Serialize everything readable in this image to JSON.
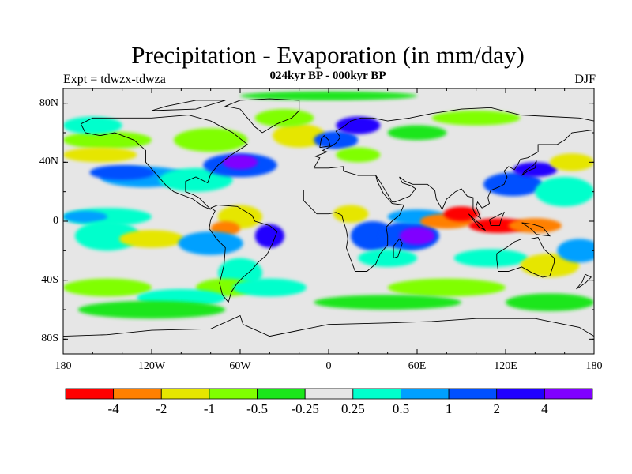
{
  "title": "Precipitation - Evaporation (in mm/day)",
  "subtitle": "024kyr BP - 000kyr BP",
  "left_label": "Expt = tdwzx-tdwza",
  "right_label": "DJF",
  "y_ticks": [
    "80N",
    "40N",
    "0",
    "40S",
    "80S"
  ],
  "x_ticks": [
    "180",
    "120W",
    "60W",
    "0",
    "60E",
    "120E",
    "180"
  ],
  "colorbar": {
    "colors": [
      "#ff0000",
      "#ff8000",
      "#e6e600",
      "#80ff00",
      "#1ae61a",
      "#e6e6e6",
      "#00ffcc",
      "#00a0ff",
      "#0050ff",
      "#2000ff",
      "#8000ff"
    ],
    "labels": [
      "-4",
      "-2",
      "-1",
      "-0.5",
      "-0.25",
      "0.25",
      "0.5",
      "1",
      "2",
      "4"
    ]
  },
  "map": {
    "background": "#e6e6e6",
    "patches": [
      {
        "lon": -150,
        "lat": 3,
        "rx": 30,
        "ry": 6,
        "color": "#00ffcc"
      },
      {
        "lon": -165,
        "lat": 3,
        "rx": 15,
        "ry": 4,
        "color": "#00a0ff"
      },
      {
        "lon": -125,
        "lat": 30,
        "rx": 30,
        "ry": 7,
        "color": "#00a0ff"
      },
      {
        "lon": -140,
        "lat": 33,
        "rx": 22,
        "ry": 5,
        "color": "#0050ff"
      },
      {
        "lon": -150,
        "lat": -10,
        "rx": 22,
        "ry": 10,
        "color": "#00ffcc"
      },
      {
        "lon": -120,
        "lat": -12,
        "rx": 22,
        "ry": 6,
        "color": "#e6e600"
      },
      {
        "lon": -150,
        "lat": 55,
        "rx": 30,
        "ry": 6,
        "color": "#80ff00"
      },
      {
        "lon": -160,
        "lat": 65,
        "rx": 20,
        "ry": 6,
        "color": "#00ffcc"
      },
      {
        "lon": -155,
        "lat": 45,
        "rx": 25,
        "ry": 5,
        "color": "#e6e600"
      },
      {
        "lon": -90,
        "lat": 28,
        "rx": 25,
        "ry": 8,
        "color": "#00ffcc"
      },
      {
        "lon": -60,
        "lat": 38,
        "rx": 25,
        "ry": 8,
        "color": "#0050ff"
      },
      {
        "lon": -60,
        "lat": 40,
        "rx": 12,
        "ry": 5,
        "color": "#8000ff"
      },
      {
        "lon": -80,
        "lat": 55,
        "rx": 25,
        "ry": 8,
        "color": "#80ff00"
      },
      {
        "lon": -60,
        "lat": 3,
        "rx": 15,
        "ry": 8,
        "color": "#e6e600"
      },
      {
        "lon": -70,
        "lat": -5,
        "rx": 10,
        "ry": 5,
        "color": "#ff8000"
      },
      {
        "lon": -40,
        "lat": -10,
        "rx": 10,
        "ry": 8,
        "color": "#2000ff"
      },
      {
        "lon": -80,
        "lat": -15,
        "rx": 22,
        "ry": 8,
        "color": "#00a0ff"
      },
      {
        "lon": -60,
        "lat": -35,
        "rx": 15,
        "ry": 10,
        "color": "#00ffcc"
      },
      {
        "lon": -70,
        "lat": -45,
        "rx": 20,
        "ry": 6,
        "color": "#80ff00"
      },
      {
        "lon": -40,
        "lat": -45,
        "rx": 25,
        "ry": 6,
        "color": "#00ffcc"
      },
      {
        "lon": -150,
        "lat": -45,
        "rx": 30,
        "ry": 6,
        "color": "#80ff00"
      },
      {
        "lon": -100,
        "lat": -52,
        "rx": 30,
        "ry": 6,
        "color": "#00ffcc"
      },
      {
        "lon": -120,
        "lat": -60,
        "rx": 50,
        "ry": 6,
        "color": "#1ae61a"
      },
      {
        "lon": -20,
        "lat": 58,
        "rx": 18,
        "ry": 8,
        "color": "#e6e600"
      },
      {
        "lon": -30,
        "lat": 70,
        "rx": 20,
        "ry": 6,
        "color": "#80ff00"
      },
      {
        "lon": 5,
        "lat": 55,
        "rx": 15,
        "ry": 6,
        "color": "#0050ff"
      },
      {
        "lon": 20,
        "lat": 65,
        "rx": 15,
        "ry": 6,
        "color": "#2000ff"
      },
      {
        "lon": 20,
        "lat": 45,
        "rx": 15,
        "ry": 5,
        "color": "#80ff00"
      },
      {
        "lon": 15,
        "lat": 5,
        "rx": 12,
        "ry": 6,
        "color": "#e6e600"
      },
      {
        "lon": 30,
        "lat": -10,
        "rx": 15,
        "ry": 10,
        "color": "#0050ff"
      },
      {
        "lon": 55,
        "lat": -10,
        "rx": 20,
        "ry": 10,
        "color": "#0050ff"
      },
      {
        "lon": 60,
        "lat": -10,
        "rx": 12,
        "ry": 6,
        "color": "#8000ff"
      },
      {
        "lon": 40,
        "lat": -25,
        "rx": 20,
        "ry": 6,
        "color": "#00ffcc"
      },
      {
        "lon": 60,
        "lat": 3,
        "rx": 20,
        "ry": 5,
        "color": "#00a0ff"
      },
      {
        "lon": 80,
        "lat": 0,
        "rx": 18,
        "ry": 5,
        "color": "#ff8000"
      },
      {
        "lon": 90,
        "lat": 5,
        "rx": 12,
        "ry": 5,
        "color": "#ff0000"
      },
      {
        "lon": 115,
        "lat": -3,
        "rx": 20,
        "ry": 5,
        "color": "#ff0000"
      },
      {
        "lon": 140,
        "lat": -3,
        "rx": 18,
        "ry": 5,
        "color": "#ff8000"
      },
      {
        "lon": 125,
        "lat": 25,
        "rx": 20,
        "ry": 8,
        "color": "#0050ff"
      },
      {
        "lon": 140,
        "lat": 35,
        "rx": 15,
        "ry": 5,
        "color": "#2000ff"
      },
      {
        "lon": 160,
        "lat": 20,
        "rx": 20,
        "ry": 10,
        "color": "#00ffcc"
      },
      {
        "lon": 165,
        "lat": 40,
        "rx": 15,
        "ry": 6,
        "color": "#e6e600"
      },
      {
        "lon": 110,
        "lat": -25,
        "rx": 25,
        "ry": 6,
        "color": "#00ffcc"
      },
      {
        "lon": 150,
        "lat": -30,
        "rx": 20,
        "ry": 8,
        "color": "#e6e600"
      },
      {
        "lon": 170,
        "lat": -20,
        "rx": 15,
        "ry": 8,
        "color": "#00a0ff"
      },
      {
        "lon": 80,
        "lat": -45,
        "rx": 40,
        "ry": 6,
        "color": "#80ff00"
      },
      {
        "lon": 40,
        "lat": -55,
        "rx": 50,
        "ry": 5,
        "color": "#1ae61a"
      },
      {
        "lon": 150,
        "lat": -55,
        "rx": 30,
        "ry": 6,
        "color": "#1ae61a"
      },
      {
        "lon": 100,
        "lat": 70,
        "rx": 30,
        "ry": 5,
        "color": "#80ff00"
      },
      {
        "lon": 60,
        "lat": 60,
        "rx": 20,
        "ry": 5,
        "color": "#1ae61a"
      },
      {
        "lon": 0,
        "lat": 85,
        "rx": 60,
        "ry": 3,
        "color": "#1ae61a"
      }
    ],
    "coastlines": [
      [
        [
          -168,
          66
        ],
        [
          -160,
          70
        ],
        [
          -140,
          70
        ],
        [
          -120,
          70
        ],
        [
          -95,
          72
        ],
        [
          -80,
          68
        ],
        [
          -65,
          60
        ],
        [
          -55,
          52
        ],
        [
          -66,
          45
        ],
        [
          -75,
          38
        ],
        [
          -80,
          32
        ],
        [
          -82,
          26
        ],
        [
          -90,
          30
        ],
        [
          -97,
          27
        ],
        [
          -97,
          20
        ],
        [
          -92,
          18
        ],
        [
          -88,
          16
        ],
        [
          -84,
          12
        ],
        [
          -80,
          8
        ],
        [
          -85,
          10
        ],
        [
          -92,
          15
        ],
        [
          -105,
          20
        ],
        [
          -110,
          24
        ],
        [
          -117,
          32
        ],
        [
          -124,
          40
        ],
        [
          -124,
          48
        ],
        [
          -132,
          55
        ],
        [
          -145,
          60
        ],
        [
          -155,
          58
        ],
        [
          -165,
          60
        ],
        [
          -168,
          66
        ]
      ],
      [
        [
          -80,
          9
        ],
        [
          -75,
          11
        ],
        [
          -62,
          10
        ],
        [
          -52,
          4
        ],
        [
          -50,
          0
        ],
        [
          -40,
          -3
        ],
        [
          -35,
          -7
        ],
        [
          -38,
          -15
        ],
        [
          -42,
          -23
        ],
        [
          -48,
          -28
        ],
        [
          -52,
          -33
        ],
        [
          -58,
          -38
        ],
        [
          -62,
          -42
        ],
        [
          -66,
          -48
        ],
        [
          -68,
          -55
        ],
        [
          -72,
          -50
        ],
        [
          -74,
          -42
        ],
        [
          -71,
          -30
        ],
        [
          -70,
          -18
        ],
        [
          -76,
          -12
        ],
        [
          -81,
          -5
        ],
        [
          -80,
          1
        ],
        [
          -77,
          7
        ],
        [
          -80,
          9
        ]
      ],
      [
        [
          -10,
          36
        ],
        [
          -6,
          43
        ],
        [
          -9,
          44
        ],
        [
          -1,
          47
        ],
        [
          -4,
          48
        ],
        [
          2,
          51
        ],
        [
          5,
          53
        ],
        [
          8,
          57
        ],
        [
          5,
          61
        ],
        [
          10,
          64
        ],
        [
          15,
          68
        ],
        [
          22,
          70
        ],
        [
          30,
          70
        ],
        [
          40,
          68
        ],
        [
          55,
          70
        ],
        [
          70,
          73
        ],
        [
          90,
          76
        ],
        [
          110,
          77
        ],
        [
          130,
          72
        ],
        [
          150,
          71
        ],
        [
          170,
          70
        ],
        [
          180,
          68
        ]
      ],
      [
        [
          180,
          62
        ],
        [
          165,
          60
        ],
        [
          160,
          55
        ],
        [
          155,
          52
        ],
        [
          142,
          52
        ],
        [
          142,
          47
        ],
        [
          135,
          43
        ],
        [
          130,
          42
        ],
        [
          128,
          38
        ],
        [
          126,
          35
        ],
        [
          122,
          37
        ],
        [
          119,
          34
        ],
        [
          121,
          30
        ],
        [
          119,
          25
        ],
        [
          115,
          23
        ],
        [
          110,
          21
        ],
        [
          108,
          16
        ],
        [
          109,
          12
        ],
        [
          106,
          10
        ],
        [
          104,
          9
        ],
        [
          101,
          13
        ],
        [
          100,
          10
        ],
        [
          103,
          2
        ],
        [
          100,
          4
        ],
        [
          98,
          8
        ],
        [
          98,
          16
        ],
        [
          94,
          17
        ],
        [
          90,
          22
        ],
        [
          86,
          20
        ],
        [
          80,
          15
        ],
        [
          77,
          8
        ],
        [
          73,
          15
        ],
        [
          72,
          21
        ],
        [
          67,
          25
        ],
        [
          57,
          25
        ],
        [
          52,
          27
        ],
        [
          48,
          30
        ],
        [
          50,
          26
        ],
        [
          56,
          24
        ],
        [
          59,
          22
        ],
        [
          55,
          17
        ],
        [
          45,
          13
        ],
        [
          43,
          13
        ],
        [
          39,
          20
        ],
        [
          34,
          28
        ],
        [
          32,
          31
        ],
        [
          28,
          31
        ],
        [
          20,
          31
        ],
        [
          10,
          34
        ],
        [
          10,
          37
        ],
        [
          0,
          36
        ],
        [
          -5,
          36
        ],
        [
          -10,
          36
        ]
      ],
      [
        [
          -17,
          21
        ],
        [
          -17,
          14
        ],
        [
          -12,
          9
        ],
        [
          -8,
          5
        ],
        [
          0,
          5
        ],
        [
          5,
          6
        ],
        [
          9,
          4
        ],
        [
          10,
          0
        ],
        [
          12,
          -6
        ],
        [
          13,
          -12
        ],
        [
          12,
          -18
        ],
        [
          15,
          -26
        ],
        [
          18,
          -34
        ],
        [
          26,
          -34
        ],
        [
          32,
          -29
        ],
        [
          35,
          -22
        ],
        [
          40,
          -16
        ],
        [
          40,
          -10
        ],
        [
          39,
          -4
        ],
        [
          43,
          0
        ],
        [
          48,
          4
        ],
        [
          51,
          11
        ],
        [
          43,
          12
        ],
        [
          37,
          19
        ],
        [
          33,
          27
        ],
        [
          32,
          31
        ]
      ],
      [
        [
          114,
          -22
        ],
        [
          114,
          -26
        ],
        [
          115,
          -34
        ],
        [
          122,
          -34
        ],
        [
          131,
          -31
        ],
        [
          138,
          -35
        ],
        [
          145,
          -38
        ],
        [
          150,
          -37
        ],
        [
          153,
          -28
        ],
        [
          153,
          -25
        ],
        [
          146,
          -19
        ],
        [
          142,
          -11
        ],
        [
          137,
          -12
        ],
        [
          131,
          -12
        ],
        [
          126,
          -14
        ],
        [
          122,
          -17
        ],
        [
          114,
          -22
        ]
      ],
      [
        [
          -180,
          -78
        ],
        [
          -150,
          -77
        ],
        [
          -120,
          -74
        ],
        [
          -80,
          -73
        ],
        [
          -60,
          -64
        ],
        [
          -58,
          -70
        ],
        [
          -40,
          -78
        ],
        [
          0,
          -70
        ],
        [
          40,
          -69
        ],
        [
          70,
          -68
        ],
        [
          100,
          -66
        ],
        [
          140,
          -66
        ],
        [
          170,
          -72
        ],
        [
          180,
          -78
        ]
      ],
      [
        [
          -45,
          60
        ],
        [
          -50,
          64
        ],
        [
          -55,
          70
        ],
        [
          -60,
          76
        ],
        [
          -70,
          78
        ],
        [
          -60,
          82
        ],
        [
          -40,
          83
        ],
        [
          -20,
          82
        ],
        [
          -20,
          75
        ],
        [
          -25,
          70
        ],
        [
          -35,
          66
        ],
        [
          -45,
          60
        ]
      ],
      [
        [
          95,
          5
        ],
        [
          98,
          2
        ],
        [
          104,
          -3
        ],
        [
          106,
          -6
        ],
        [
          102,
          -4
        ],
        [
          98,
          1
        ],
        [
          95,
          5
        ]
      ],
      [
        [
          109,
          1
        ],
        [
          115,
          4
        ],
        [
          119,
          6
        ],
        [
          117,
          1
        ],
        [
          116,
          -3
        ],
        [
          110,
          -3
        ],
        [
          109,
          1
        ]
      ],
      [
        [
          131,
          -1
        ],
        [
          138,
          -2
        ],
        [
          145,
          -4
        ],
        [
          150,
          -10
        ],
        [
          141,
          -9
        ],
        [
          137,
          -5
        ],
        [
          131,
          -1
        ]
      ],
      [
        [
          44,
          -25
        ],
        [
          47,
          -24
        ],
        [
          50,
          -15
        ],
        [
          48,
          -12
        ],
        [
          44,
          -17
        ],
        [
          44,
          -25
        ]
      ],
      [
        [
          -6,
          50
        ],
        [
          1,
          51
        ],
        [
          0,
          55
        ],
        [
          -3,
          58
        ],
        [
          -5,
          56
        ],
        [
          -6,
          50
        ]
      ],
      [
        [
          131,
          31
        ],
        [
          135,
          34
        ],
        [
          140,
          36
        ],
        [
          141,
          41
        ],
        [
          139,
          38
        ],
        [
          133,
          34
        ],
        [
          131,
          31
        ]
      ],
      [
        [
          172,
          -41
        ],
        [
          174,
          -36
        ],
        [
          178,
          -38
        ],
        [
          174,
          -42
        ],
        [
          168,
          -46
        ],
        [
          172,
          -41
        ]
      ],
      [
        [
          -120,
          75
        ],
        [
          -90,
          76
        ],
        [
          -70,
          82
        ],
        [
          -90,
          82
        ],
        [
          -110,
          78
        ],
        [
          -120,
          75
        ]
      ]
    ]
  }
}
